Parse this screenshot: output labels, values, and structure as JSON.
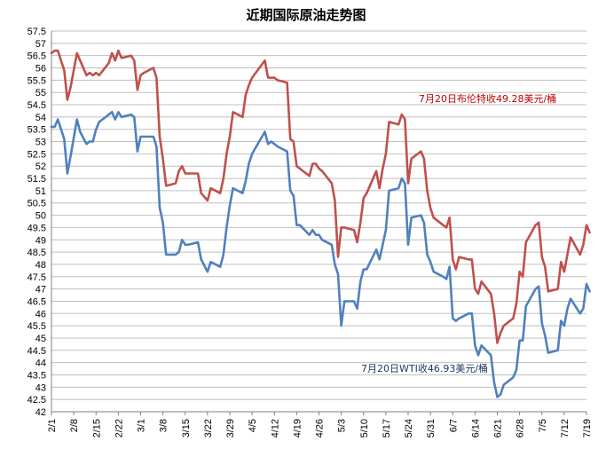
{
  "chart_data": {
    "type": "line",
    "title": "近期国际原油走势图",
    "xlabel": "",
    "ylabel": "",
    "ylim": [
      42,
      57.5
    ],
    "ytick_step": 0.5,
    "grid": true,
    "x_ticks": [
      "2/1",
      "2/8",
      "2/15",
      "2/22",
      "3/1",
      "3/8",
      "3/15",
      "3/22",
      "3/29",
      "4/5",
      "4/12",
      "4/19",
      "4/26",
      "5/3",
      "5/10",
      "5/17",
      "5/24",
      "5/31",
      "6/7",
      "6/14",
      "6/21",
      "6/28",
      "7/5",
      "7/12",
      "7/19"
    ],
    "series": [
      {
        "name": "",
        "color": "#c0504d",
        "points": [
          [
            "2/1",
            56.6
          ],
          [
            "2/2",
            56.7
          ],
          [
            "2/3",
            56.7
          ],
          [
            "2/5",
            55.9
          ],
          [
            "2/6",
            54.7
          ],
          [
            "2/7",
            55.2
          ],
          [
            "2/9",
            56.6
          ],
          [
            "2/10",
            56.3
          ],
          [
            "2/12",
            55.7
          ],
          [
            "2/13",
            55.8
          ],
          [
            "2/14",
            55.7
          ],
          [
            "2/15",
            55.8
          ],
          [
            "2/16",
            55.7
          ],
          [
            "2/19",
            56.2
          ],
          [
            "2/20",
            56.6
          ],
          [
            "2/21",
            56.3
          ],
          [
            "2/22",
            56.7
          ],
          [
            "2/23",
            56.4
          ],
          [
            "2/26",
            56.5
          ],
          [
            "2/27",
            56.3
          ],
          [
            "2/28",
            55.1
          ],
          [
            "3/1",
            55.7
          ],
          [
            "3/2",
            55.8
          ],
          [
            "3/5",
            56.0
          ],
          [
            "3/6",
            55.6
          ],
          [
            "3/7",
            53.2
          ],
          [
            "3/8",
            52.3
          ],
          [
            "3/9",
            51.2
          ],
          [
            "3/12",
            51.3
          ],
          [
            "3/13",
            51.8
          ],
          [
            "3/14",
            52.0
          ],
          [
            "3/15",
            51.7
          ],
          [
            "3/16",
            51.7
          ],
          [
            "3/19",
            51.7
          ],
          [
            "3/20",
            50.9
          ],
          [
            "3/22",
            50.6
          ],
          [
            "3/23",
            51.1
          ],
          [
            "3/26",
            50.9
          ],
          [
            "3/27",
            51.5
          ],
          [
            "3/28",
            52.5
          ],
          [
            "3/29",
            53.2
          ],
          [
            "3/30",
            54.2
          ],
          [
            "4/2",
            54.0
          ],
          [
            "4/3",
            54.9
          ],
          [
            "4/4",
            55.3
          ],
          [
            "4/5",
            55.6
          ],
          [
            "4/9",
            56.3
          ],
          [
            "4/10",
            55.6
          ],
          [
            "4/11",
            55.6
          ],
          [
            "4/12",
            55.6
          ],
          [
            "4/13",
            55.5
          ],
          [
            "4/16",
            55.4
          ],
          [
            "4/17",
            53.1
          ],
          [
            "4/18",
            53.0
          ],
          [
            "4/19",
            52.0
          ],
          [
            "4/20",
            51.9
          ],
          [
            "4/23",
            51.6
          ],
          [
            "4/24",
            52.1
          ],
          [
            "4/25",
            52.1
          ],
          [
            "4/26",
            51.9
          ],
          [
            "4/27",
            51.8
          ],
          [
            "4/30",
            51.3
          ],
          [
            "5/1",
            50.6
          ],
          [
            "5/2",
            48.3
          ],
          [
            "5/3",
            49.5
          ],
          [
            "5/4",
            49.5
          ],
          [
            "5/7",
            49.4
          ],
          [
            "5/8",
            48.9
          ],
          [
            "5/9",
            49.7
          ],
          [
            "5/10",
            50.7
          ],
          [
            "5/11",
            50.9
          ],
          [
            "5/14",
            51.8
          ],
          [
            "5/15",
            51.1
          ],
          [
            "5/16",
            51.9
          ],
          [
            "5/17",
            52.5
          ],
          [
            "5/18",
            53.8
          ],
          [
            "5/21",
            53.7
          ],
          [
            "5/22",
            54.1
          ],
          [
            "5/23",
            53.9
          ],
          [
            "5/24",
            51.3
          ],
          [
            "5/25",
            52.3
          ],
          [
            "5/28",
            52.6
          ],
          [
            "5/29",
            52.3
          ],
          [
            "5/30",
            51.0
          ],
          [
            "5/31",
            50.3
          ],
          [
            "6/1",
            49.9
          ],
          [
            "6/4",
            49.6
          ],
          [
            "6/5",
            49.5
          ],
          [
            "6/6",
            49.9
          ],
          [
            "6/7",
            48.2
          ],
          [
            "6/8",
            47.8
          ],
          [
            "6/9",
            48.3
          ],
          [
            "6/12",
            48.2
          ],
          [
            "6/13",
            48.2
          ],
          [
            "6/14",
            47.0
          ],
          [
            "6/15",
            46.8
          ],
          [
            "6/16",
            47.3
          ],
          [
            "6/19",
            46.8
          ],
          [
            "6/20",
            46.0
          ],
          [
            "6/21",
            44.8
          ],
          [
            "6/22",
            45.2
          ],
          [
            "6/23",
            45.5
          ],
          [
            "6/26",
            45.8
          ],
          [
            "6/27",
            46.4
          ],
          [
            "6/28",
            47.7
          ],
          [
            "6/29",
            47.5
          ],
          [
            "6/30",
            48.9
          ],
          [
            "7/3",
            49.6
          ],
          [
            "7/4",
            49.7
          ],
          [
            "7/5",
            48.3
          ],
          [
            "7/6",
            47.9
          ],
          [
            "7/7",
            46.9
          ],
          [
            "7/10",
            47.0
          ],
          [
            "7/11",
            48.1
          ],
          [
            "7/12",
            47.7
          ],
          [
            "7/13",
            48.4
          ],
          [
            "7/14",
            49.1
          ],
          [
            "7/17",
            48.4
          ],
          [
            "7/18",
            48.8
          ],
          [
            "7/19",
            49.6
          ],
          [
            "7/20",
            49.3
          ]
        ]
      },
      {
        "name": "",
        "color": "#4f81bd",
        "points": [
          [
            "2/1",
            53.6
          ],
          [
            "2/2",
            53.6
          ],
          [
            "2/3",
            53.9
          ],
          [
            "2/5",
            53.1
          ],
          [
            "2/6",
            51.7
          ],
          [
            "2/7",
            52.4
          ],
          [
            "2/9",
            53.9
          ],
          [
            "2/10",
            53.4
          ],
          [
            "2/12",
            52.9
          ],
          [
            "2/13",
            53.0
          ],
          [
            "2/14",
            53.0
          ],
          [
            "2/15",
            53.5
          ],
          [
            "2/16",
            53.8
          ],
          [
            "2/19",
            54.1
          ],
          [
            "2/20",
            54.2
          ],
          [
            "2/21",
            53.9
          ],
          [
            "2/22",
            54.2
          ],
          [
            "2/23",
            54.0
          ],
          [
            "2/26",
            54.1
          ],
          [
            "2/27",
            54.0
          ],
          [
            "2/28",
            52.6
          ],
          [
            "3/1",
            53.2
          ],
          [
            "3/2",
            53.2
          ],
          [
            "3/5",
            53.2
          ],
          [
            "3/6",
            52.8
          ],
          [
            "3/7",
            50.3
          ],
          [
            "3/8",
            49.7
          ],
          [
            "3/9",
            48.4
          ],
          [
            "3/12",
            48.4
          ],
          [
            "3/13",
            48.5
          ],
          [
            "3/14",
            49.0
          ],
          [
            "3/15",
            48.8
          ],
          [
            "3/16",
            48.8
          ],
          [
            "3/19",
            48.9
          ],
          [
            "3/20",
            48.2
          ],
          [
            "3/22",
            47.7
          ],
          [
            "3/23",
            48.1
          ],
          [
            "3/26",
            47.9
          ],
          [
            "3/27",
            48.4
          ],
          [
            "3/28",
            49.5
          ],
          [
            "3/29",
            50.4
          ],
          [
            "3/30",
            51.1
          ],
          [
            "4/2",
            50.9
          ],
          [
            "4/3",
            51.4
          ],
          [
            "4/4",
            52.1
          ],
          [
            "4/5",
            52.5
          ],
          [
            "4/9",
            53.4
          ],
          [
            "4/10",
            52.9
          ],
          [
            "4/11",
            53.0
          ],
          [
            "4/12",
            52.9
          ],
          [
            "4/13",
            52.8
          ],
          [
            "4/16",
            52.6
          ],
          [
            "4/17",
            51.0
          ],
          [
            "4/18",
            50.8
          ],
          [
            "4/19",
            49.6
          ],
          [
            "4/20",
            49.6
          ],
          [
            "4/23",
            49.2
          ],
          [
            "4/24",
            49.4
          ],
          [
            "4/25",
            49.2
          ],
          [
            "4/26",
            49.2
          ],
          [
            "4/27",
            49.0
          ],
          [
            "4/30",
            48.8
          ],
          [
            "5/1",
            48.0
          ],
          [
            "5/2",
            47.6
          ],
          [
            "5/3",
            45.5
          ],
          [
            "5/4",
            46.5
          ],
          [
            "5/7",
            46.5
          ],
          [
            "5/8",
            46.2
          ],
          [
            "5/9",
            47.3
          ],
          [
            "5/10",
            47.8
          ],
          [
            "5/11",
            47.8
          ],
          [
            "5/14",
            48.6
          ],
          [
            "5/15",
            48.2
          ],
          [
            "5/16",
            48.8
          ],
          [
            "5/17",
            49.4
          ],
          [
            "5/18",
            51.0
          ],
          [
            "5/21",
            51.1
          ],
          [
            "5/22",
            51.5
          ],
          [
            "5/23",
            51.3
          ],
          [
            "5/24",
            48.8
          ],
          [
            "5/25",
            49.9
          ],
          [
            "5/28",
            50.0
          ],
          [
            "5/29",
            49.7
          ],
          [
            "5/30",
            48.4
          ],
          [
            "5/31",
            48.1
          ],
          [
            "6/1",
            47.7
          ],
          [
            "6/4",
            47.5
          ],
          [
            "6/5",
            47.4
          ],
          [
            "6/6",
            47.9
          ],
          [
            "6/7",
            45.8
          ],
          [
            "6/8",
            45.7
          ],
          [
            "6/9",
            45.8
          ],
          [
            "6/12",
            46.0
          ],
          [
            "6/13",
            46.0
          ],
          [
            "6/14",
            44.7
          ],
          [
            "6/15",
            44.3
          ],
          [
            "6/16",
            44.7
          ],
          [
            "6/19",
            44.3
          ],
          [
            "6/20",
            43.2
          ],
          [
            "6/21",
            42.6
          ],
          [
            "6/22",
            42.7
          ],
          [
            "6/23",
            43.1
          ],
          [
            "6/26",
            43.4
          ],
          [
            "6/27",
            43.7
          ],
          [
            "6/28",
            44.9
          ],
          [
            "6/29",
            44.9
          ],
          [
            "6/30",
            46.3
          ],
          [
            "7/3",
            47.0
          ],
          [
            "7/4",
            47.1
          ],
          [
            "7/5",
            45.6
          ],
          [
            "7/6",
            45.1
          ],
          [
            "7/7",
            44.4
          ],
          [
            "7/10",
            44.5
          ],
          [
            "7/11",
            45.7
          ],
          [
            "7/12",
            45.5
          ],
          [
            "7/13",
            46.2
          ],
          [
            "7/14",
            46.6
          ],
          [
            "7/17",
            46.0
          ],
          [
            "7/18",
            46.2
          ],
          [
            "7/19",
            47.2
          ],
          [
            "7/20",
            46.9
          ]
        ]
      }
    ],
    "annotations": [
      {
        "text": "7月20日布伦特收49.28美元/桶",
        "color": "#c00000"
      },
      {
        "text": "7月20日WTI收46.93美元/桶",
        "color": "#1f3864"
      }
    ]
  }
}
